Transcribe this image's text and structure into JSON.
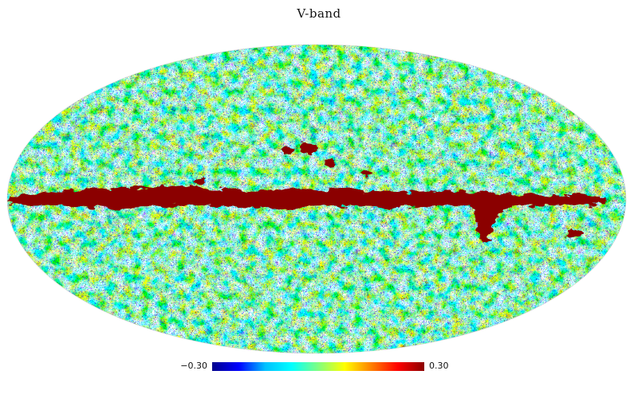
{
  "title": "V-band",
  "colorbar": {
    "min_label": "−0.30",
    "max_label": "0.30",
    "min_value": -0.3,
    "max_value": 0.3,
    "colormap": [
      "#00008b",
      "#0000ff",
      "#00c0ff",
      "#00ffff",
      "#80ff80",
      "#ffff00",
      "#ff8000",
      "#ff0000",
      "#8b0000"
    ]
  },
  "colors": {
    "galactic_plane": "#8b0000",
    "background": "#ffffff"
  }
}
